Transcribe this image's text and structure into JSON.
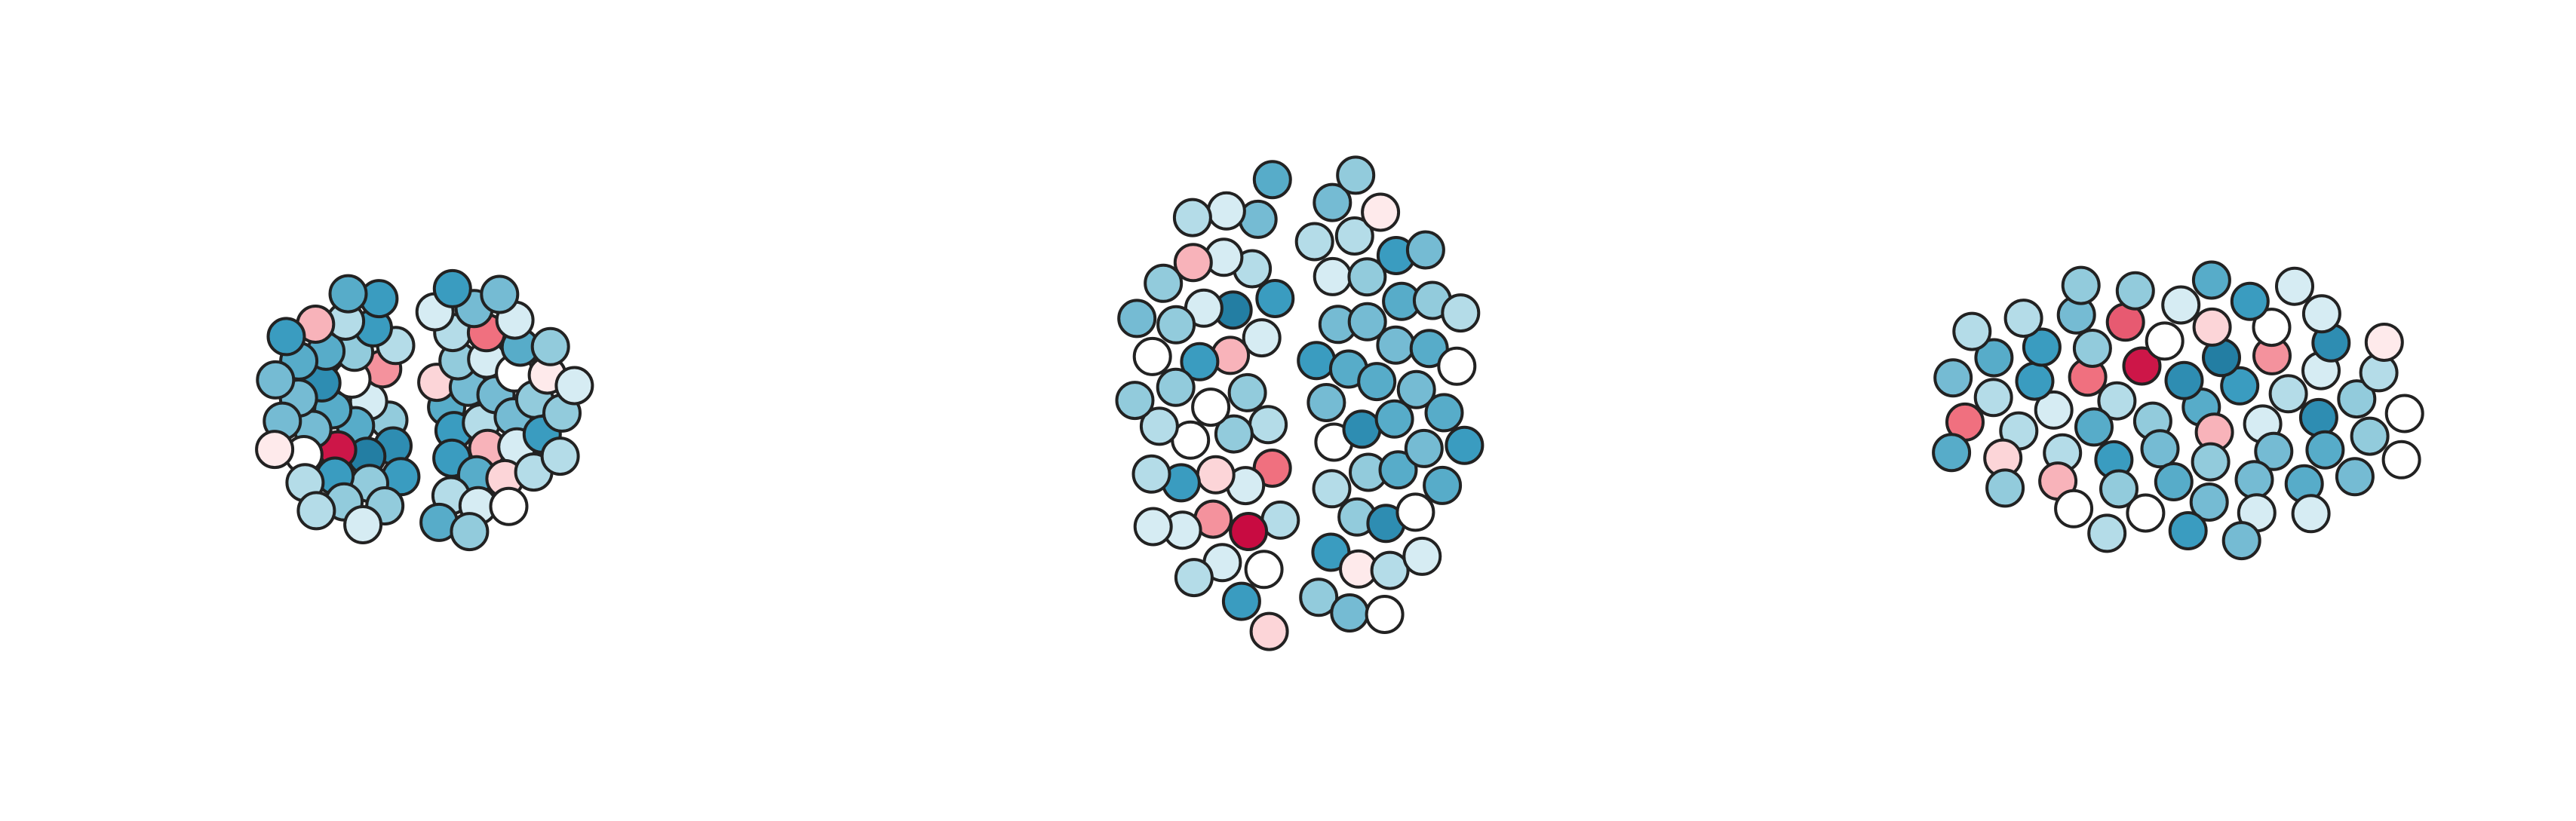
{
  "views": [
    {
      "values": [
        -0.5,
        -0.3,
        0.2,
        -0.6,
        -0.1,
        -0.4,
        -0.7,
        0.4,
        -0.2,
        -0.5,
        -0.3,
        -0.6,
        0,
        -0.4,
        -0.8,
        -0.2,
        0.3,
        -0.5,
        -0.1,
        -0.6,
        -0.3,
        -0.4,
        0.9,
        -0.2,
        -0.5,
        -0.7,
        0,
        -0.3,
        -0.6,
        -0.1,
        -0.4,
        0.5,
        -0.2,
        -0.5,
        -0.3,
        -0.6,
        -0.1,
        0.2,
        -0.4,
        -0.5,
        -0.3,
        -0.2,
        -0.6,
        0,
        -0.4,
        -0.1,
        -0.5,
        0.1,
        -0.3,
        -0.6,
        -0.2,
        -0.4,
        -0.1,
        -0.5,
        0.3,
        -0.3,
        -0.2,
        -0.6,
        0,
        -0.4,
        -0.3,
        -0.1,
        -0.5,
        -0.2,
        0.1,
        -0.4,
        -0.3,
        -0.6,
        -0.1,
        -0.2
      ]
    },
    {
      "values": [
        -0.4,
        -0.2,
        -0.6,
        0,
        -0.3,
        -0.5,
        0.5,
        -0.1,
        -0.7,
        -0.3,
        -0.4,
        -0.2,
        0.3,
        -0.5,
        -0.1,
        -0.6,
        -0.3,
        0,
        -0.4,
        -0.2,
        -0.8,
        -0.5,
        0.2,
        -0.1,
        -0.3,
        -0.6,
        -0.4,
        0.95,
        -0.2,
        -0.5,
        0,
        -0.3,
        -0.6,
        -0.1,
        -0.4,
        0.4,
        -0.2,
        -0.7,
        -0.3,
        -0.5,
        0,
        -0.1,
        -0.4,
        -0.6,
        -0.2,
        0.1,
        -0.3,
        -0.5,
        -0.1,
        -0.4,
        0,
        -0.2,
        -0.6,
        -0.3,
        0.3,
        -0.5,
        -0.1,
        -0.4,
        -0.2,
        0,
        -0.3,
        -0.6,
        -0.1,
        -0.5,
        -0.2,
        0.1,
        -0.4,
        -0.3,
        0,
        -0.2,
        -0.5,
        -0.1,
        -0.3,
        -0.4,
        0.2,
        -0.2,
        -0.6,
        -0.1,
        -0.3,
        0,
        -0.4,
        -0.2
      ]
    },
    {
      "values": [
        -0.5,
        -0.3,
        -0.7,
        0.3,
        -0.2,
        -0.6,
        -0.4,
        0.9,
        -0.1,
        -0.5,
        -0.8,
        -0.3,
        0.5,
        -0.2,
        -0.6,
        0,
        -0.4,
        -0.1,
        0.4,
        -0.5,
        -0.3,
        -0.7,
        -0.2,
        0.2,
        -0.4,
        -0.6,
        -0.1,
        -0.3,
        0.6,
        -0.5,
        -0.2,
        0,
        -0.4,
        -0.6,
        -0.3,
        0.3,
        -0.1,
        -0.5,
        -0.2,
        -0.7,
        0,
        -0.4,
        -0.3,
        0.2,
        -0.6,
        -0.1,
        -0.5,
        -0.2,
        0,
        -0.3,
        -0.4,
        0.5,
        -0.1,
        -0.6,
        -0.2,
        0,
        -0.3,
        -0.5,
        -0.1,
        -0.4,
        0.1,
        -0.2,
        -0.3,
        0,
        -0.5,
        -0.1,
        -0.4,
        -0.2
      ]
    }
  ],
  "color_range": [
    -1,
    1
  ]
}
